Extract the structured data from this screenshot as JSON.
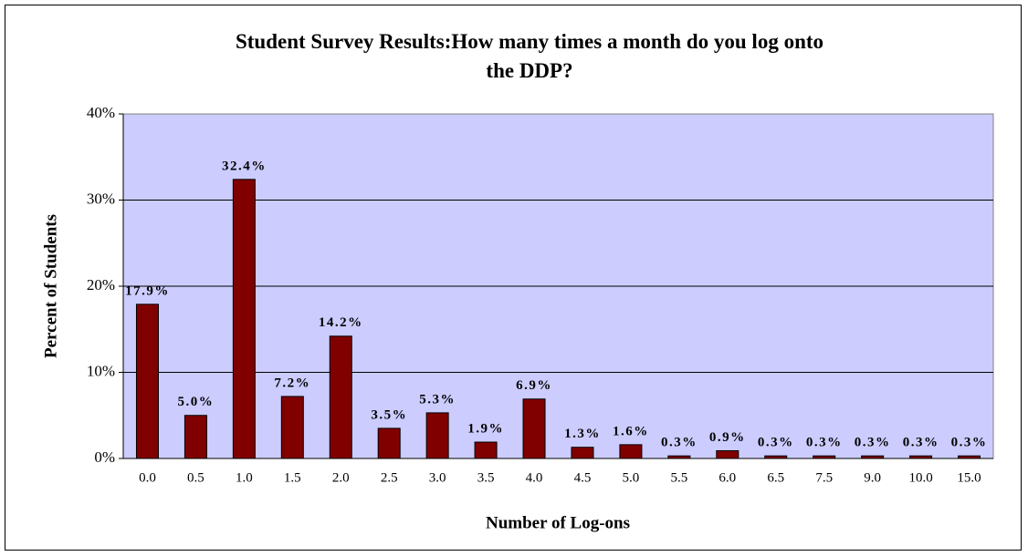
{
  "chart_data": {
    "type": "bar",
    "title": "Student Survey Results:How many times a month do you log onto\nthe DDP?",
    "xlabel": "Number of Log-ons",
    "ylabel": "Percent of Students",
    "categories": [
      "0.0",
      "0.5",
      "1.0",
      "1.5",
      "2.0",
      "2.5",
      "3.0",
      "3.5",
      "4.0",
      "4.5",
      "5.0",
      "5.5",
      "6.0",
      "6.5",
      "7.5",
      "9.0",
      "10.0",
      "15.0"
    ],
    "values": [
      17.9,
      5.0,
      32.4,
      7.2,
      14.2,
      3.5,
      5.3,
      1.9,
      6.9,
      1.3,
      1.6,
      0.3,
      0.9,
      0.3,
      0.3,
      0.3,
      0.3,
      0.3
    ],
    "value_labels": [
      "17.9%",
      "5.0%",
      "32.4%",
      "7.2%",
      "14.2%",
      "3.5%",
      "5.3%",
      "1.9%",
      "6.9%",
      "1.3%",
      "1.6%",
      "0.3%",
      "0.9%",
      "0.3%",
      "0.3%",
      "0.3%",
      "0.3%",
      "0.3%"
    ],
    "color": "#800000",
    "ylim": [
      0,
      40
    ],
    "yticks": [
      {
        "value": 0,
        "label": "0%"
      },
      {
        "value": 10,
        "label": "10%"
      },
      {
        "value": 20,
        "label": "20%"
      },
      {
        "value": 30,
        "label": "30%"
      },
      {
        "value": 40,
        "label": "40%"
      }
    ],
    "grid": true
  }
}
